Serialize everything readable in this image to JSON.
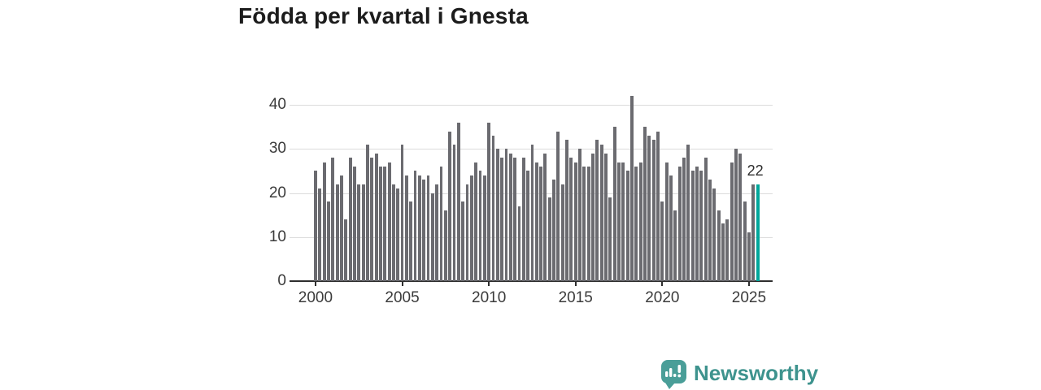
{
  "title": "Födda per kvartal i Gnesta",
  "colors": {
    "bar": "#6b6b70",
    "highlight": "#00a79b",
    "grid": "#dcdcdc",
    "axis": "#2e2e2e",
    "logo": "#4a9e98"
  },
  "chart_data": {
    "type": "bar",
    "title": "Födda per kvartal i Gnesta",
    "ylabel": "",
    "xlabel": "",
    "ylim": [
      0,
      44
    ],
    "grid": "horizontal",
    "legend_position": "none",
    "y_ticks": [
      0,
      10,
      20,
      30,
      40
    ],
    "x_ticks": [
      2000,
      2005,
      2010,
      2015,
      2020,
      2025
    ],
    "categories": [
      "2000 K1",
      "2000 K2",
      "2000 K3",
      "2000 K4",
      "2001 K1",
      "2001 K2",
      "2001 K3",
      "2001 K4",
      "2002 K1",
      "2002 K2",
      "2002 K3",
      "2002 K4",
      "2003 K1",
      "2003 K2",
      "2003 K3",
      "2003 K4",
      "2004 K1",
      "2004 K2",
      "2004 K3",
      "2004 K4",
      "2005 K1",
      "2005 K2",
      "2005 K3",
      "2005 K4",
      "2006 K1",
      "2006 K2",
      "2006 K3",
      "2006 K4",
      "2007 K1",
      "2007 K2",
      "2007 K3",
      "2007 K4",
      "2008 K1",
      "2008 K2",
      "2008 K3",
      "2008 K4",
      "2009 K1",
      "2009 K2",
      "2009 K3",
      "2009 K4",
      "2010 K1",
      "2010 K2",
      "2010 K3",
      "2010 K4",
      "2011 K1",
      "2011 K2",
      "2011 K3",
      "2011 K4",
      "2012 K1",
      "2012 K2",
      "2012 K3",
      "2012 K4",
      "2013 K1",
      "2013 K2",
      "2013 K3",
      "2013 K4",
      "2014 K1",
      "2014 K2",
      "2014 K3",
      "2014 K4",
      "2015 K1",
      "2015 K2",
      "2015 K3",
      "2015 K4",
      "2016 K1",
      "2016 K2",
      "2016 K3",
      "2016 K4",
      "2017 K1",
      "2017 K2",
      "2017 K3",
      "2017 K4",
      "2018 K1",
      "2018 K2",
      "2018 K3",
      "2018 K4",
      "2019 K1",
      "2019 K2",
      "2019 K3",
      "2019 K4",
      "2020 K1",
      "2020 K2",
      "2020 K3",
      "2020 K4",
      "2021 K1",
      "2021 K2",
      "2021 K3",
      "2021 K4",
      "2022 K1",
      "2022 K2",
      "2022 K3",
      "2022 K4",
      "2023 K1",
      "2023 K2",
      "2023 K3",
      "2023 K4",
      "2024 K1",
      "2024 K2",
      "2024 K3",
      "2024 K4",
      "2025 K1",
      "2025 K2",
      "2025 K3"
    ],
    "values": [
      25,
      21,
      27,
      18,
      28,
      22,
      24,
      14,
      28,
      26,
      22,
      22,
      31,
      28,
      29,
      26,
      26,
      27,
      22,
      21,
      31,
      24,
      18,
      25,
      24,
      23,
      24,
      20,
      22,
      26,
      16,
      34,
      31,
      36,
      18,
      22,
      24,
      27,
      25,
      24,
      36,
      33,
      30,
      28,
      30,
      29,
      28,
      17,
      28,
      25,
      31,
      27,
      26,
      29,
      19,
      23,
      34,
      22,
      32,
      28,
      27,
      30,
      26,
      26,
      29,
      32,
      31,
      29,
      19,
      35,
      27,
      27,
      25,
      42,
      26,
      27,
      35,
      33,
      32,
      34,
      18,
      27,
      24,
      16,
      26,
      28,
      31,
      25,
      26,
      25,
      28,
      23,
      21,
      16,
      13,
      14,
      27,
      30,
      29,
      18,
      11,
      22,
      22
    ],
    "highlight_index": 102,
    "annotation": {
      "text": "22",
      "index": 102
    }
  },
  "footer": {
    "brand": "Newsworthy"
  }
}
